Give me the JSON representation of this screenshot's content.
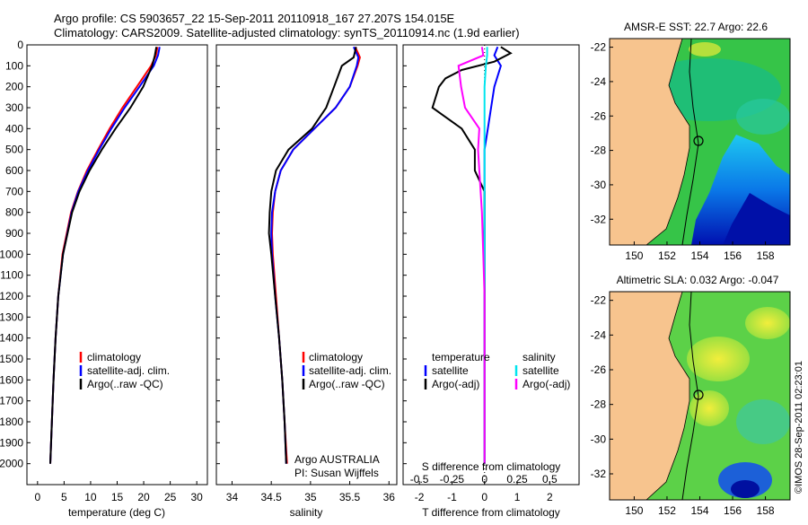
{
  "header": {
    "line1": "Argo profile: CS 5903657_22 15-Sep-2011 20110918_167 27.207S 154.015E",
    "line2": "Climatology: CARS2009. Satellite-adjusted climatology: synTS_20110914.nc (1.9d earlier)"
  },
  "side_label": "©IMOS 28-Sep-2011 02:23:01",
  "colors": {
    "climatology": "#ff0000",
    "satellite": "#0000ff",
    "argo": "#000000",
    "sal_satellite": "#00e5ee",
    "sal_argo": "#ff00ff",
    "land": "#f7c48e",
    "sea_light": "#5fd04a",
    "sea_dark": "#0000b0"
  },
  "chart_data": [
    {
      "type": "line",
      "xlabel": "temperature (deg C)",
      "ylabel": "",
      "xlim": [
        -2,
        32
      ],
      "ylim": [
        2100,
        0
      ],
      "xticks": [
        "0",
        "5",
        "10",
        "15",
        "20",
        "25",
        "30"
      ],
      "yticks": [
        "0",
        "100",
        "200",
        "300",
        "400",
        "500",
        "600",
        "700",
        "800",
        "900",
        "1000",
        "1100",
        "1200",
        "1300",
        "1400",
        "1500",
        "1600",
        "1700",
        "1800",
        "1900",
        "2000"
      ],
      "legend": [
        "climatology",
        "satellite-adj. clim.",
        "Argo(..raw -QC)"
      ],
      "series": [
        {
          "name": "climatology",
          "depth": [
            10,
            50,
            100,
            200,
            300,
            400,
            500,
            600,
            700,
            800,
            1000,
            1200,
            1400,
            1600,
            1800,
            2000
          ],
          "values": [
            22.6,
            22.3,
            21.4,
            18.7,
            16.0,
            13.6,
            11.4,
            9.3,
            7.6,
            6.3,
            4.7,
            3.9,
            3.4,
            3.0,
            2.7,
            2.4
          ]
        },
        {
          "name": "satellite-adj. clim.",
          "depth": [
            10,
            50,
            100,
            200,
            300,
            400,
            500,
            600,
            700,
            800,
            1000,
            1200,
            1400,
            1600,
            1800,
            2000
          ],
          "values": [
            23.0,
            22.7,
            21.9,
            19.2,
            16.4,
            13.9,
            11.6,
            9.5,
            7.7,
            6.4,
            4.8,
            3.9,
            3.4,
            3.0,
            2.7,
            2.4
          ]
        },
        {
          "name": "Argo(..raw -QC)",
          "depth": [
            10,
            50,
            100,
            200,
            300,
            400,
            500,
            600,
            700,
            800,
            1000,
            1200,
            1400,
            1600,
            1800,
            2000
          ],
          "values": [
            22.4,
            22.1,
            21.6,
            19.9,
            17.5,
            14.7,
            12.1,
            9.8,
            7.9,
            6.5,
            4.8,
            3.9,
            3.4,
            3.0,
            2.7,
            2.4
          ]
        }
      ]
    },
    {
      "type": "line",
      "xlabel": "salinity",
      "xlim": [
        33.8,
        36.1
      ],
      "ylim": [
        2100,
        0
      ],
      "xticks": [
        "34",
        "34.5",
        "35",
        "35.5",
        "36"
      ],
      "legend": [
        "climatology",
        "satellite-adj. clim.",
        "Argo(..raw -QC)"
      ],
      "annotation": [
        "Argo AUSTRALIA",
        "PI: Susan Wijffels"
      ],
      "series": [
        {
          "name": "climatology",
          "depth": [
            10,
            60,
            100,
            200,
            300,
            400,
            500,
            600,
            700,
            800,
            900,
            1000,
            1200,
            1400,
            1600,
            1800,
            2000
          ],
          "values": [
            35.57,
            35.63,
            35.6,
            35.5,
            35.32,
            35.05,
            34.78,
            34.62,
            34.55,
            34.52,
            34.51,
            34.52,
            34.56,
            34.6,
            34.64,
            34.67,
            34.7
          ]
        },
        {
          "name": "satellite-adj. clim.",
          "depth": [
            10,
            60,
            100,
            200,
            300,
            400,
            500,
            600,
            700,
            800,
            900,
            1000,
            1200,
            1400,
            1600,
            1800,
            2000
          ],
          "values": [
            35.55,
            35.61,
            35.59,
            35.5,
            35.32,
            35.05,
            34.78,
            34.62,
            34.55,
            34.51,
            34.5,
            34.51,
            34.55,
            34.6,
            34.64,
            34.67,
            34.69
          ]
        },
        {
          "name": "Argo(..raw -QC)",
          "depth": [
            10,
            60,
            100,
            200,
            300,
            400,
            500,
            600,
            700,
            800,
            900,
            1000,
            1200,
            1400,
            1600,
            1800,
            2000
          ],
          "values": [
            35.58,
            35.55,
            35.4,
            35.3,
            35.2,
            35.02,
            34.72,
            34.56,
            34.5,
            34.48,
            34.47,
            34.5,
            34.55,
            34.6,
            34.64,
            34.67,
            34.69
          ]
        }
      ]
    },
    {
      "type": "line",
      "xlabel": "T difference from climatology",
      "xlabel_top": "S difference from climatology",
      "xlim": [
        -2.5,
        2.9
      ],
      "ylim": [
        2100,
        0
      ],
      "xticks": [
        "-2",
        "-1",
        "0",
        "1",
        "2"
      ],
      "xticks_s": [
        "-0.5",
        "-0.25",
        "0",
        "0.25",
        "0.5"
      ],
      "legend_t_head": "temperature",
      "legend_s_head": "salinity",
      "legend_t": [
        "satellite",
        "Argo(-adj)"
      ],
      "legend_s": [
        "satellite",
        "Argo(-adj)"
      ],
      "series": [
        {
          "name": "temperature satellite",
          "depth": [
            10,
            50,
            100,
            200,
            300,
            400,
            500,
            600,
            700,
            800,
            1000,
            1200,
            1500,
            2000
          ],
          "values": [
            0.4,
            0.3,
            0.5,
            0.3,
            0.2,
            0.1,
            0.0,
            0.0,
            0.0,
            0.0,
            0.0,
            0.0,
            0.0,
            0.0
          ]
        },
        {
          "name": "temperature Argo(-adj)",
          "depth": [
            10,
            40,
            80,
            120,
            160,
            200,
            300,
            400,
            500,
            600,
            700,
            800,
            1000,
            1200,
            1500,
            2000
          ],
          "values": [
            0.5,
            0.8,
            0.3,
            -0.7,
            -1.2,
            -1.4,
            -1.6,
            -0.7,
            -0.3,
            -0.3,
            0.0,
            0.0,
            0.0,
            0.0,
            0.0,
            0.0
          ]
        },
        {
          "name": "salinity satellite",
          "depth": [
            10,
            50,
            100,
            200,
            400,
            600,
            800,
            1000,
            1200,
            1500,
            2000
          ],
          "values": [
            0.02,
            0.02,
            0.01,
            0.0,
            0.0,
            0.0,
            0.0,
            0.0,
            0.0,
            0.0,
            0.0
          ]
        },
        {
          "name": "salinity Argo(-adj)",
          "depth": [
            10,
            50,
            100,
            200,
            300,
            400,
            500,
            600,
            800,
            1000,
            1200,
            1500,
            2000
          ],
          "values": [
            -0.02,
            -0.01,
            -0.2,
            -0.18,
            -0.15,
            -0.04,
            -0.05,
            -0.04,
            -0.02,
            -0.01,
            0.0,
            0.0,
            0.0
          ]
        }
      ]
    },
    {
      "type": "heatmap",
      "title": "AMSR-E SST: 22.7 Argo: 22.6",
      "xlim": [
        148.5,
        159.5
      ],
      "ylim": [
        -33.5,
        -21.5
      ],
      "xticks": [
        "150",
        "152",
        "154",
        "156",
        "158"
      ],
      "yticks": [
        "-22",
        "-24",
        "-26",
        "-28",
        "-30",
        "-32"
      ]
    },
    {
      "type": "heatmap",
      "title": "Altimetric SLA: 0.032 Argo: -0.047",
      "xlim": [
        148.5,
        159.5
      ],
      "ylim": [
        -33.5,
        -21.5
      ],
      "xticks": [
        "150",
        "152",
        "154",
        "156",
        "158"
      ],
      "yticks": [
        "-22",
        "-24",
        "-26",
        "-28",
        "-30",
        "-32"
      ]
    }
  ]
}
